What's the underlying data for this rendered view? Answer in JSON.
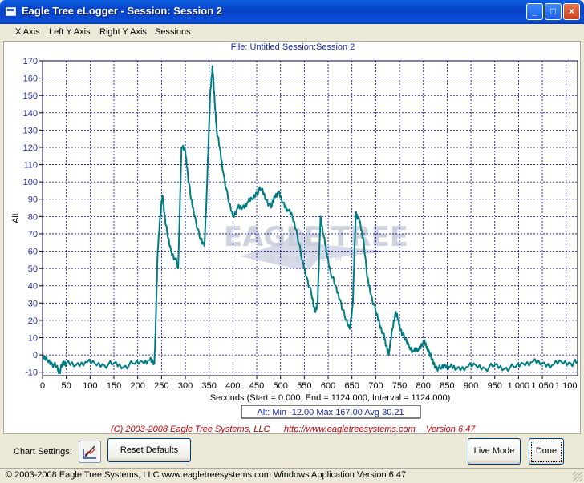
{
  "window": {
    "title": "Eagle Tree eLogger - Session: Session 2",
    "minimize": "_",
    "maximize": "□",
    "close": "×"
  },
  "menu": [
    {
      "label": "X Axis",
      "mnemonic": "X"
    },
    {
      "label": "Left Y Axis",
      "mnemonic": "L"
    },
    {
      "label": "Right Y Axis",
      "mnemonic": "R"
    },
    {
      "label": "Sessions",
      "mnemonic": ""
    }
  ],
  "header": {
    "file_label": "File: Untitled   Session:Session 2"
  },
  "chart_data": {
    "type": "line",
    "ylabel": "Alt",
    "xlabel": "Seconds (Start = 0.000,  End = 1124.000,  Interval = 1124.000)",
    "xlim": [
      0,
      1124
    ],
    "ylim": [
      -12,
      170
    ],
    "xticks": [
      0,
      50,
      100,
      150,
      200,
      250,
      300,
      350,
      400,
      450,
      500,
      550,
      600,
      650,
      700,
      750,
      800,
      850,
      900,
      950,
      1000,
      1050,
      1100
    ],
    "xtick_labels": [
      "0",
      "50",
      "100",
      "150",
      "200",
      "250",
      "300",
      "350",
      "400",
      "450",
      "500",
      "550",
      "600",
      "650",
      "700",
      "750",
      "800",
      "850",
      "900",
      "950",
      "1 000",
      "1 050",
      "1 100"
    ],
    "yticks": [
      -10,
      0,
      10,
      20,
      30,
      40,
      50,
      60,
      70,
      80,
      90,
      100,
      110,
      120,
      130,
      140,
      150,
      160,
      170
    ],
    "grid": true,
    "line_color": "#007c80",
    "series": [
      {
        "name": "Alt",
        "x": [
          0,
          10,
          20,
          30,
          35,
          40,
          45,
          50,
          70,
          90,
          110,
          130,
          150,
          170,
          190,
          210,
          225,
          235,
          238,
          242,
          247,
          252,
          256,
          262,
          270,
          280,
          285,
          292,
          300,
          305,
          312,
          320,
          330,
          340,
          346,
          352,
          357,
          362,
          366,
          372,
          380,
          390,
          400,
          410,
          420,
          430,
          440,
          450,
          460,
          470,
          480,
          488,
          495,
          505,
          515,
          525,
          535,
          545,
          555,
          565,
          572,
          578,
          584,
          590,
          596,
          605,
          615,
          625,
          635,
          645,
          652,
          658,
          662,
          668,
          675,
          682,
          690,
          700,
          708,
          716,
          722,
          728,
          735,
          742,
          747,
          752,
          760,
          770,
          780,
          790,
          800,
          806,
          812,
          818,
          826,
          836,
          846,
          856,
          870,
          890,
          910,
          930,
          950,
          970,
          990,
          1010,
          1030,
          1050,
          1070,
          1090,
          1110,
          1124
        ],
        "y": [
          -2,
          -3,
          -5,
          -7,
          -10,
          -7,
          -4,
          -5,
          -6,
          -4,
          -5,
          -6,
          -5,
          -7,
          -5,
          -4,
          -3,
          -5,
          20,
          60,
          80,
          92,
          82,
          70,
          60,
          55,
          50,
          120,
          118,
          105,
          90,
          80,
          68,
          63,
          100,
          150,
          167,
          145,
          130,
          120,
          105,
          90,
          80,
          85,
          85,
          88,
          90,
          94,
          96,
          90,
          85,
          92,
          94,
          88,
          84,
          80,
          70,
          55,
          45,
          35,
          25,
          30,
          80,
          70,
          60,
          48,
          40,
          32,
          22,
          15,
          30,
          82,
          80,
          75,
          65,
          45,
          35,
          25,
          18,
          12,
          5,
          1,
          15,
          25,
          20,
          15,
          10,
          5,
          2,
          3,
          8,
          5,
          2,
          -3,
          -7,
          -8,
          -6,
          -7,
          -8,
          -7,
          -6,
          -8,
          -6,
          -8,
          -7,
          -5,
          -4,
          -5,
          -6,
          -4,
          -5,
          -4
        ]
      }
    ]
  },
  "stats": {
    "label": "Alt:  Min -12.00   Max 167.00   Avg 30.21"
  },
  "credits": {
    "copyright": "(C) 2003-2008 Eagle Tree Systems, LLC",
    "url": "http://www.eagletreesystems.com",
    "version": "Version 6.47"
  },
  "watermark": {
    "text": "EAGLE TREE",
    "subtext": "SYSTEMS"
  },
  "bottom": {
    "chart_settings_label": "Chart Settings:",
    "reset_label": "Reset Defaults",
    "live_label": "Live Mode",
    "done_label": "Done"
  },
  "status": {
    "text": "© 2003-2008 Eagle Tree Systems, LLC     www.eagletreesystems.com     Windows Application Version 6.47"
  }
}
